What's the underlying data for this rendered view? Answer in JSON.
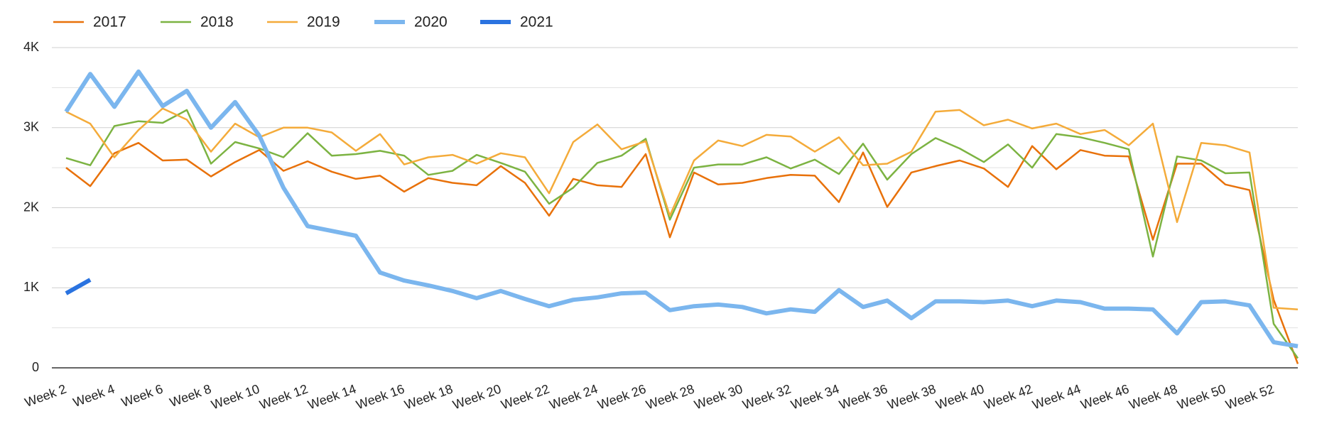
{
  "chart_data": {
    "type": "line",
    "categories": [
      "Week 2",
      null,
      "Week 4",
      null,
      "Week 6",
      null,
      "Week 8",
      null,
      "Week 10",
      null,
      "Week 12",
      null,
      "Week 14",
      null,
      "Week 16",
      null,
      "Week 18",
      null,
      "Week 20",
      null,
      "Week 22",
      null,
      "Week 24",
      null,
      "Week 26",
      null,
      "Week 28",
      null,
      "Week 30",
      null,
      "Week 32",
      null,
      "Week 34",
      null,
      "Week 36",
      null,
      "Week 38",
      null,
      "Week 40",
      null,
      "Week 42",
      null,
      "Week 44",
      null,
      "Week 46",
      null,
      "Week 48",
      null,
      "Week 50",
      null,
      "Week 52",
      null
    ],
    "series": [
      {
        "name": "2017",
        "color": "#e8710a",
        "width": 2.5,
        "values": [
          2500,
          2270,
          2680,
          2810,
          2590,
          2600,
          2390,
          2570,
          2720,
          2460,
          2580,
          2450,
          2360,
          2400,
          2200,
          2370,
          2310,
          2280,
          2520,
          2310,
          1900,
          2360,
          2280,
          2260,
          2670,
          1630,
          2440,
          2290,
          2310,
          2370,
          2410,
          2400,
          2070,
          2690,
          2010,
          2440,
          2520,
          2590,
          2490,
          2260,
          2770,
          2480,
          2720,
          2650,
          2640,
          1600,
          2550,
          2550,
          2290,
          2220,
          850,
          50
        ]
      },
      {
        "name": "2018",
        "color": "#7cb342",
        "width": 2.5,
        "values": [
          2620,
          2530,
          3020,
          3080,
          3060,
          3220,
          2550,
          2820,
          2740,
          2630,
          2930,
          2650,
          2670,
          2710,
          2650,
          2410,
          2460,
          2660,
          2560,
          2450,
          2050,
          2250,
          2560,
          2650,
          2860,
          1850,
          2500,
          2540,
          2540,
          2630,
          2490,
          2600,
          2420,
          2800,
          2350,
          2670,
          2870,
          2740,
          2570,
          2790,
          2500,
          2920,
          2880,
          2810,
          2730,
          1390,
          2640,
          2590,
          2430,
          2440,
          550,
          120
        ]
      },
      {
        "name": "2019",
        "color": "#f4ab3a",
        "width": 2.5,
        "values": [
          3200,
          3050,
          2630,
          2970,
          3240,
          3100,
          2700,
          3050,
          2880,
          3000,
          3000,
          2940,
          2710,
          2920,
          2540,
          2630,
          2660,
          2550,
          2680,
          2630,
          2180,
          2820,
          3040,
          2730,
          2830,
          1900,
          2590,
          2840,
          2770,
          2910,
          2890,
          2700,
          2880,
          2530,
          2550,
          2700,
          3200,
          3220,
          3030,
          3100,
          2990,
          3050,
          2920,
          2970,
          2780,
          3050,
          1820,
          2810,
          2780,
          2690,
          750,
          730
        ]
      },
      {
        "name": "2020",
        "color": "#7bb6ee",
        "width": 6,
        "values": [
          3200,
          3670,
          3260,
          3700,
          3270,
          3460,
          3000,
          3320,
          2900,
          2250,
          1770,
          1710,
          1650,
          1190,
          1090,
          1030,
          960,
          870,
          960,
          860,
          770,
          850,
          880,
          930,
          940,
          720,
          770,
          790,
          760,
          680,
          730,
          700,
          970,
          760,
          840,
          620,
          830,
          830,
          820,
          840,
          770,
          840,
          820,
          740,
          740,
          730,
          430,
          820,
          830,
          780,
          320,
          270
        ]
      },
      {
        "name": "2021",
        "color": "#2a73e0",
        "width": 6,
        "values": [
          930,
          1100,
          null,
          null,
          null,
          null,
          null,
          null,
          null,
          null,
          null,
          null,
          null,
          null,
          null,
          null,
          null,
          null,
          null,
          null,
          null,
          null,
          null,
          null,
          null,
          null,
          null,
          null,
          null,
          null,
          null,
          null,
          null,
          null,
          null,
          null,
          null,
          null,
          null,
          null,
          null,
          null,
          null,
          null,
          null,
          null,
          null,
          null,
          null,
          null,
          null,
          null
        ]
      }
    ],
    "ylim": [
      0,
      4000
    ],
    "yticks": [
      0,
      {
        "value": 1000,
        "label": "1K"
      },
      {
        "value": 2000,
        "label": "2K"
      },
      {
        "value": 3000,
        "label": "3K"
      },
      {
        "value": 4000,
        "label": "4K"
      }
    ],
    "yminor": [
      500,
      1500,
      2500,
      3500
    ],
    "grid": true,
    "legend": "top-left"
  }
}
